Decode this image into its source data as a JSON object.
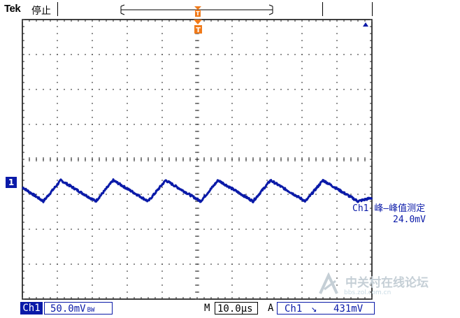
{
  "header": {
    "brand": "Tek",
    "status": "停止"
  },
  "channel": {
    "marker": "1",
    "name": "Ch1",
    "scale": "50.0mV",
    "bw_symbol": "BW",
    "color": "#0a1aa8"
  },
  "measurement": {
    "label": "Ch1 峰–峰值测定",
    "value": "24.0mV"
  },
  "timebase": {
    "prefix": "M",
    "value": "10.0μs"
  },
  "trigger": {
    "mode": "A",
    "source": "Ch1",
    "slope_symbol": "↘",
    "level": "431mV",
    "marker": "T",
    "marker_color": "#f07a1a"
  },
  "watermark": {
    "text": "中关村在线论坛",
    "sub": "bbs.zol.com.cn"
  },
  "chart_data": {
    "type": "line",
    "title": "",
    "xlabel": "",
    "ylabel": "",
    "divisions": {
      "x": 10,
      "y": 8
    },
    "grid": true,
    "series": [
      {
        "x": [
          0,
          0.6,
          1.1,
          2.1,
          2.6,
          3.6,
          4.1,
          5.1,
          5.6,
          6.6,
          7.1,
          8.1,
          8.6,
          9.6,
          10.0
        ],
        "y": [
          -0.8,
          -1.2,
          -0.6,
          -1.2,
          -0.6,
          -1.2,
          -0.6,
          -1.2,
          -0.6,
          -1.2,
          -0.6,
          -1.2,
          -0.6,
          -1.2,
          -1.1
        ]
      }
    ]
  }
}
